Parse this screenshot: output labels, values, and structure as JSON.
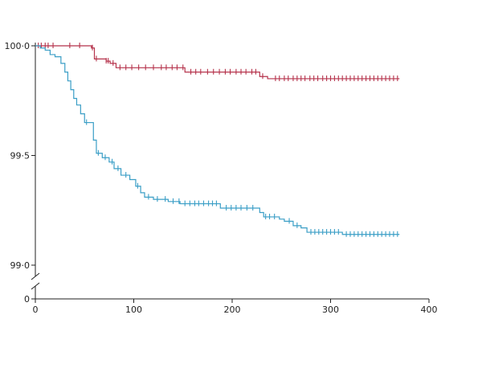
{
  "chart_data": {
    "type": "line",
    "title": "",
    "xlabel": "",
    "ylabel": "",
    "xlim": [
      0,
      400
    ],
    "ylim_main": [
      99.0,
      100.0
    ],
    "axis_break": true,
    "grid": false,
    "legend": "none",
    "x_ticks": [
      0,
      100,
      200,
      300,
      400
    ],
    "x_tick_labels": [
      "0",
      "100",
      "200",
      "300",
      "400"
    ],
    "y_ticks": [
      100.0,
      99.5,
      99.0
    ],
    "y_tick_labels": [
      "100·0",
      "99·5",
      "99·0"
    ],
    "y_zero_label": "0",
    "series": [
      {
        "color": "#b5324b",
        "steps": [
          [
            0,
            100.0
          ],
          [
            57,
            99.99
          ],
          [
            60,
            99.94
          ],
          [
            72,
            99.93
          ],
          [
            76,
            99.92
          ],
          [
            82,
            99.9
          ],
          [
            152,
            99.88
          ],
          [
            228,
            99.86
          ],
          [
            236,
            99.85
          ],
          [
            370,
            99.85
          ]
        ],
        "censor_marks": [
          3,
          6,
          10,
          13,
          18,
          35,
          45,
          58,
          62,
          72,
          74,
          79,
          86,
          92,
          98,
          105,
          112,
          120,
          128,
          133,
          139,
          144,
          150,
          158,
          163,
          168,
          175,
          181,
          187,
          193,
          198,
          204,
          209,
          214,
          220,
          224,
          231,
          244,
          248,
          253,
          257,
          262,
          266,
          270,
          274,
          279,
          283,
          287,
          292,
          296,
          300,
          304,
          308,
          312,
          316,
          320,
          324,
          328,
          332,
          336,
          340,
          344,
          348,
          352,
          356,
          360,
          364,
          368
        ]
      },
      {
        "color": "#3a9ec6",
        "steps": [
          [
            0,
            100.0
          ],
          [
            5,
            99.99
          ],
          [
            10,
            99.98
          ],
          [
            15,
            99.96
          ],
          [
            20,
            99.95
          ],
          [
            26,
            99.92
          ],
          [
            30,
            99.88
          ],
          [
            33,
            99.84
          ],
          [
            36,
            99.8
          ],
          [
            39,
            99.76
          ],
          [
            42,
            99.73
          ],
          [
            46,
            99.69
          ],
          [
            50,
            99.65
          ],
          [
            59,
            99.57
          ],
          [
            62,
            99.51
          ],
          [
            68,
            99.49
          ],
          [
            75,
            99.47
          ],
          [
            80,
            99.44
          ],
          [
            87,
            99.41
          ],
          [
            96,
            99.39
          ],
          [
            102,
            99.36
          ],
          [
            107,
            99.33
          ],
          [
            111,
            99.31
          ],
          [
            120,
            99.3
          ],
          [
            135,
            99.29
          ],
          [
            147,
            99.28
          ],
          [
            170,
            99.28
          ],
          [
            188,
            99.26
          ],
          [
            228,
            99.24
          ],
          [
            232,
            99.22
          ],
          [
            248,
            99.21
          ],
          [
            253,
            99.2
          ],
          [
            262,
            99.18
          ],
          [
            270,
            99.17
          ],
          [
            276,
            99.15
          ],
          [
            312,
            99.14
          ],
          [
            370,
            99.14
          ]
        ],
        "censor_marks": [
          52,
          64,
          71,
          78,
          84,
          92,
          104,
          115,
          124,
          132,
          140,
          146,
          152,
          157,
          162,
          166,
          171,
          176,
          180,
          184,
          194,
          199,
          204,
          209,
          215,
          221,
          234,
          238,
          243,
          258,
          266,
          280,
          284,
          288,
          292,
          296,
          300,
          304,
          308,
          316,
          320,
          324,
          328,
          332,
          336,
          340,
          344,
          348,
          352,
          356,
          360,
          364,
          368
        ]
      }
    ]
  }
}
